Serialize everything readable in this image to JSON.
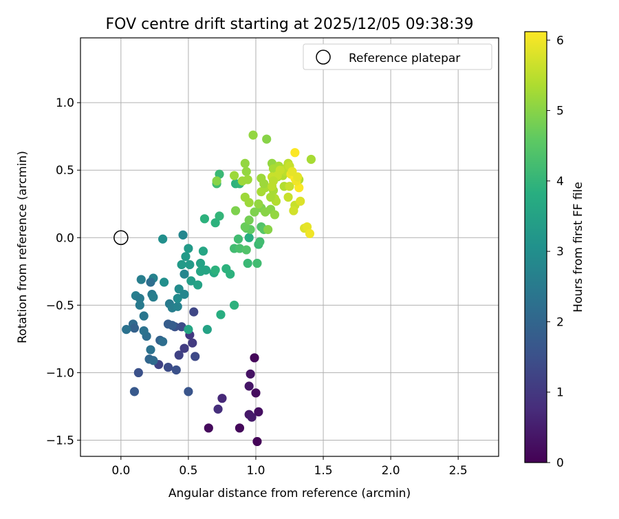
{
  "chart_data": {
    "type": "scatter",
    "title": "FOV centre drift starting at 2025/12/05 09:38:39",
    "xlabel": "Angular distance from reference (arcmin)",
    "ylabel": "Rotation from reference (arcmin)",
    "xlim": [
      -0.3,
      2.8
    ],
    "ylim": [
      -1.62,
      1.48
    ],
    "xticks": [
      0.0,
      0.5,
      1.0,
      1.5,
      2.0,
      2.5
    ],
    "xtick_labels": [
      "0.0",
      "0.5",
      "1.0",
      "1.5",
      "2.0",
      "2.5"
    ],
    "yticks": [
      1.0,
      0.5,
      0.0,
      -0.5,
      -1.0,
      -1.5
    ],
    "ytick_labels": [
      "1.0",
      "0.5",
      "0.0",
      "−0.5",
      "−1.0",
      "−1.5"
    ],
    "grid": true,
    "legend": {
      "position": "top-right",
      "label": "Reference platepar"
    },
    "reference_point": {
      "x": 0.0,
      "y": 0.0
    },
    "colorbar": {
      "label": "Hours from first FF file",
      "colormap": "viridis",
      "range": [
        0,
        6.12
      ],
      "ticks": [
        0,
        1,
        2,
        3,
        4,
        5,
        6
      ],
      "tick_labels": [
        "0",
        "1",
        "2",
        "3",
        "4",
        "5",
        "6"
      ]
    },
    "points": [
      [
        1.01,
        -1.51,
        0.05
      ],
      [
        0.88,
        -1.41,
        0.12
      ],
      [
        0.65,
        -1.41,
        0.15
      ],
      [
        0.99,
        -0.89,
        0.1
      ],
      [
        1.0,
        -1.15,
        0.2
      ],
      [
        1.02,
        -1.29,
        0.25
      ],
      [
        0.96,
        -1.01,
        0.3
      ],
      [
        0.95,
        -1.1,
        0.35
      ],
      [
        0.95,
        -1.31,
        0.4
      ],
      [
        0.97,
        -1.33,
        0.45
      ],
      [
        0.75,
        -1.19,
        0.7
      ],
      [
        0.72,
        -1.27,
        0.8
      ],
      [
        0.51,
        -0.72,
        1.0
      ],
      [
        0.53,
        -0.78,
        1.05
      ],
      [
        0.47,
        -0.82,
        1.1
      ],
      [
        0.43,
        -0.87,
        1.2
      ],
      [
        0.54,
        -0.55,
        1.3
      ],
      [
        0.55,
        -0.88,
        1.35
      ],
      [
        0.28,
        -0.94,
        1.2
      ],
      [
        0.35,
        -0.96,
        1.4
      ],
      [
        0.41,
        -0.98,
        1.5
      ],
      [
        0.13,
        -1.0,
        1.5
      ],
      [
        0.1,
        -1.14,
        1.7
      ],
      [
        0.5,
        -1.14,
        1.6
      ],
      [
        0.45,
        -0.66,
        1.4
      ],
      [
        0.4,
        -0.66,
        1.5
      ],
      [
        0.38,
        -0.65,
        1.8
      ],
      [
        0.35,
        -0.64,
        1.8
      ],
      [
        0.29,
        -0.76,
        1.9
      ],
      [
        0.21,
        -0.9,
        2.0
      ],
      [
        0.24,
        -0.91,
        2.1
      ],
      [
        0.31,
        -0.77,
        2.2
      ],
      [
        0.19,
        -0.73,
        2.2
      ],
      [
        0.17,
        -0.69,
        2.3
      ],
      [
        0.09,
        -0.64,
        2.1
      ],
      [
        0.1,
        -0.67,
        1.9
      ],
      [
        0.04,
        -0.68,
        2.3
      ],
      [
        0.22,
        -0.83,
        2.3
      ],
      [
        0.17,
        -0.58,
        2.4
      ],
      [
        0.14,
        -0.5,
        2.5
      ],
      [
        0.11,
        -0.43,
        2.6
      ],
      [
        0.14,
        -0.45,
        2.5
      ],
      [
        0.23,
        -0.42,
        2.5
      ],
      [
        0.24,
        -0.44,
        2.6
      ],
      [
        0.15,
        -0.31,
        2.6
      ],
      [
        0.24,
        -0.3,
        2.7
      ],
      [
        0.22,
        -0.33,
        2.2
      ],
      [
        0.36,
        -0.49,
        2.5
      ],
      [
        0.38,
        -0.52,
        2.6
      ],
      [
        0.42,
        -0.51,
        2.7
      ],
      [
        0.42,
        -0.45,
        2.9
      ],
      [
        0.43,
        -0.38,
        2.9
      ],
      [
        0.47,
        -0.42,
        2.8
      ],
      [
        0.47,
        -0.27,
        2.8
      ],
      [
        0.46,
        0.02,
        2.8
      ],
      [
        0.31,
        -0.01,
        3.0
      ],
      [
        0.32,
        -0.33,
        3.0
      ],
      [
        0.45,
        -0.2,
        3.3
      ],
      [
        0.48,
        -0.14,
        3.3
      ],
      [
        0.5,
        -0.08,
        3.3
      ],
      [
        0.51,
        -0.2,
        3.3
      ],
      [
        0.52,
        -0.32,
        3.4
      ],
      [
        0.57,
        -0.35,
        3.5
      ],
      [
        0.59,
        -0.19,
        3.5
      ],
      [
        0.59,
        -0.25,
        3.6
      ],
      [
        0.61,
        -0.1,
        3.6
      ],
      [
        0.63,
        -0.24,
        3.6
      ],
      [
        0.64,
        -0.68,
        3.5
      ],
      [
        0.5,
        -0.68,
        3.6
      ],
      [
        0.69,
        -0.26,
        3.7
      ],
      [
        0.7,
        -0.24,
        3.9
      ],
      [
        0.74,
        -0.57,
        3.8
      ],
      [
        0.78,
        -0.23,
        3.9
      ],
      [
        0.81,
        -0.27,
        3.9
      ],
      [
        0.84,
        -0.5,
        3.9
      ],
      [
        0.62,
        0.14,
        3.9
      ],
      [
        0.7,
        0.11,
        3.9
      ],
      [
        0.73,
        0.16,
        4.0
      ],
      [
        0.73,
        0.47,
        4.1
      ],
      [
        0.71,
        0.4,
        4.2
      ],
      [
        0.85,
        0.4,
        3.9
      ],
      [
        0.88,
        0.4,
        4.0
      ],
      [
        0.87,
        -0.01,
        4.2
      ],
      [
        0.84,
        -0.08,
        4.2
      ],
      [
        0.88,
        -0.08,
        4.3
      ],
      [
        0.93,
        -0.09,
        4.4
      ],
      [
        0.95,
        0.0,
        3.8
      ],
      [
        0.94,
        -0.19,
        4.1
      ],
      [
        1.01,
        -0.19,
        4.2
      ],
      [
        1.02,
        -0.05,
        4.1
      ],
      [
        1.03,
        -0.03,
        4.2
      ],
      [
        1.04,
        0.08,
        4.4
      ],
      [
        1.06,
        0.06,
        4.5
      ],
      [
        0.93,
        0.07,
        4.6
      ],
      [
        0.96,
        0.06,
        4.6
      ],
      [
        0.92,
        0.08,
        4.7
      ],
      [
        0.95,
        0.13,
        4.8
      ],
      [
        0.85,
        0.2,
        4.9
      ],
      [
        0.99,
        0.19,
        4.9
      ],
      [
        1.04,
        0.22,
        4.9
      ],
      [
        1.07,
        0.19,
        5.0
      ],
      [
        1.09,
        0.06,
        5.0
      ],
      [
        1.11,
        0.21,
        5.0
      ],
      [
        1.14,
        0.17,
        5.1
      ],
      [
        0.92,
        0.3,
        5.2
      ],
      [
        0.95,
        0.26,
        5.2
      ],
      [
        1.02,
        0.25,
        5.1
      ],
      [
        1.04,
        0.34,
        5.3
      ],
      [
        1.07,
        0.37,
        5.3
      ],
      [
        1.13,
        0.35,
        5.3
      ],
      [
        1.14,
        0.29,
        5.4
      ],
      [
        1.15,
        0.27,
        5.4
      ],
      [
        1.11,
        0.3,
        5.3
      ],
      [
        0.71,
        0.42,
        5.0
      ],
      [
        0.84,
        0.46,
        5.2
      ],
      [
        0.9,
        0.42,
        5.2
      ],
      [
        0.92,
        0.55,
        5.1
      ],
      [
        0.93,
        0.49,
        5.1
      ],
      [
        0.94,
        0.43,
        5.2
      ],
      [
        0.98,
        0.76,
        5.1
      ],
      [
        1.08,
        0.73,
        5.0
      ],
      [
        1.04,
        0.44,
        5.2
      ],
      [
        1.06,
        0.4,
        5.2
      ],
      [
        1.12,
        0.55,
        5.1
      ],
      [
        1.13,
        0.51,
        5.3
      ],
      [
        1.14,
        0.48,
        5.3
      ],
      [
        1.16,
        0.45,
        5.3
      ],
      [
        1.17,
        0.53,
        5.3
      ],
      [
        1.2,
        0.46,
        5.4
      ],
      [
        1.21,
        0.38,
        5.4
      ],
      [
        1.22,
        0.49,
        5.5
      ],
      [
        1.23,
        0.52,
        5.5
      ],
      [
        1.24,
        0.55,
        5.5
      ],
      [
        1.25,
        0.53,
        5.6
      ],
      [
        1.18,
        0.5,
        5.6
      ],
      [
        1.16,
        0.46,
        5.6
      ],
      [
        1.12,
        0.45,
        5.6
      ],
      [
        1.13,
        0.42,
        5.5
      ],
      [
        1.12,
        0.38,
        5.5
      ],
      [
        1.41,
        0.58,
        5.3
      ],
      [
        1.32,
        0.43,
        5.4
      ],
      [
        1.25,
        0.38,
        5.6
      ],
      [
        1.24,
        0.3,
        5.6
      ],
      [
        1.29,
        0.24,
        5.6
      ],
      [
        1.28,
        0.2,
        5.7
      ],
      [
        1.33,
        0.27,
        5.8
      ],
      [
        1.36,
        0.07,
        5.8
      ],
      [
        1.38,
        0.08,
        5.9
      ],
      [
        1.4,
        0.03,
        6.0
      ],
      [
        1.32,
        0.37,
        6.1
      ],
      [
        1.26,
        0.47,
        6.0
      ],
      [
        1.29,
        0.44,
        6.1
      ],
      [
        1.3,
        0.42,
        6.0
      ],
      [
        1.27,
        0.49,
        5.9
      ],
      [
        1.29,
        0.63,
        6.1
      ],
      [
        1.31,
        0.45,
        5.9
      ]
    ]
  }
}
